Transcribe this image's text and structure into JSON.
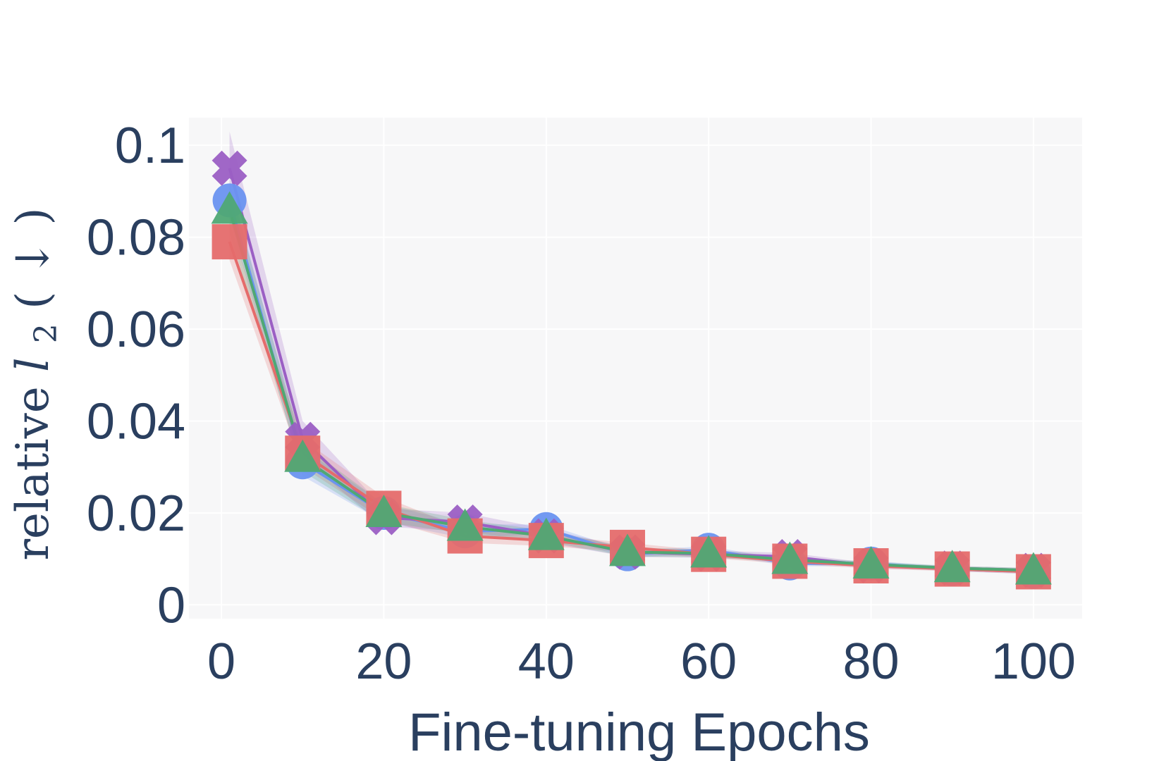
{
  "chart_data": {
    "type": "line",
    "xlabel": "Fine-tuning Epochs",
    "ylabel": {
      "word": "relative",
      "symbol": "l",
      "subscript": "2",
      "open_paren": "(",
      "arrow": "↓",
      "close_paren": ")"
    },
    "xlim": [
      -4,
      106
    ],
    "ylim": [
      -0.003,
      0.106
    ],
    "x_ticks": [
      0,
      20,
      40,
      60,
      80,
      100
    ],
    "x_tick_labels": [
      "0",
      "20",
      "40",
      "60",
      "80",
      "100"
    ],
    "y_ticks": [
      0,
      0.02,
      0.04,
      0.06,
      0.08,
      0.1
    ],
    "y_tick_labels": [
      "0",
      "0.02",
      "0.04",
      "0.06",
      "0.08",
      "0.1"
    ],
    "grid": true,
    "legend": "none",
    "colors": {
      "plot_bg": "#f7f7f8",
      "grid": "#ffffff",
      "text": "#2a3f5f"
    },
    "x": [
      1,
      10,
      20,
      30,
      40,
      50,
      60,
      70,
      80,
      90,
      100
    ],
    "series": [
      {
        "marker": "circle",
        "color": "#6a93f0",
        "values": [
          0.088,
          0.031,
          0.02,
          0.016,
          0.0165,
          0.011,
          0.012,
          0.009,
          0.009,
          0.0078,
          0.0072
        ],
        "band": [
          0.004,
          0.003,
          0.002,
          0.0015,
          0.001,
          0.0008,
          0.0008,
          0.0006,
          0.0006,
          0.0005,
          0.0005
        ]
      },
      {
        "marker": "x",
        "color": "#9b5fc4",
        "values": [
          0.095,
          0.036,
          0.019,
          0.018,
          0.015,
          0.0115,
          0.011,
          0.0105,
          0.0085,
          0.008,
          0.0075
        ],
        "band": [
          0.008,
          0.004,
          0.002,
          0.002,
          0.0015,
          0.001,
          0.0008,
          0.0008,
          0.0006,
          0.0005,
          0.0005
        ]
      },
      {
        "marker": "square",
        "color": "#e56b6b",
        "values": [
          0.079,
          0.033,
          0.021,
          0.015,
          0.014,
          0.0125,
          0.011,
          0.0095,
          0.0085,
          0.0078,
          0.0072
        ],
        "band": [
          0.004,
          0.003,
          0.0025,
          0.0015,
          0.0012,
          0.001,
          0.0008,
          0.0006,
          0.0006,
          0.0005,
          0.0005
        ]
      },
      {
        "marker": "triangle-up",
        "color": "#4fa874",
        "values": [
          0.086,
          0.032,
          0.02,
          0.017,
          0.015,
          0.0115,
          0.0112,
          0.0098,
          0.0088,
          0.008,
          0.0075
        ],
        "band": [
          0.005,
          0.003,
          0.002,
          0.0015,
          0.0012,
          0.001,
          0.0008,
          0.0006,
          0.0006,
          0.0005,
          0.0005
        ]
      }
    ]
  }
}
